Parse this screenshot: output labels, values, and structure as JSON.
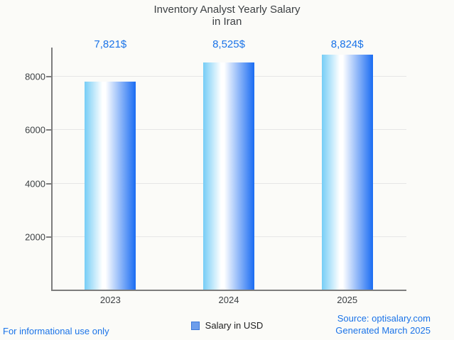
{
  "chart_data": {
    "type": "bar",
    "title": "Inventory Analyst Yearly Salary in Iran",
    "title_lines": [
      "Inventory Analyst Yearly Salary",
      "in Iran"
    ],
    "categories": [
      "2023",
      "2024",
      "2025"
    ],
    "values": [
      7821,
      8525,
      8824
    ],
    "value_labels": [
      "7,821$",
      "8,525$",
      "8,824$"
    ],
    "series": [
      {
        "name": "Salary in USD",
        "values": [
          7821,
          8525,
          8824
        ]
      }
    ],
    "xlabel": "",
    "ylabel": "",
    "ylim": [
      0,
      9000
    ],
    "yticks": [
      2000,
      4000,
      6000,
      8000
    ],
    "grid": true,
    "legend_position": "bottom",
    "colors": {
      "bar_gradient": [
        "#76cdf6",
        "#ffffff",
        "#1a6cf2"
      ],
      "value_label_blue": "#1a73e8",
      "legend_swatch_fill": "#6d9eeb",
      "legend_swatch_border": "#3c78d8",
      "axis_line": "#7d7d7d",
      "gridline": "#e6e6e6",
      "tick_text": "#3c4043",
      "title_text": "#3c4043",
      "background": "#fbfbf8"
    }
  },
  "legend": {
    "label": "Salary in USD"
  },
  "footer": {
    "left": "For informational use only",
    "source": "Source: optisalary.com",
    "generated": "Generated March 2025"
  }
}
